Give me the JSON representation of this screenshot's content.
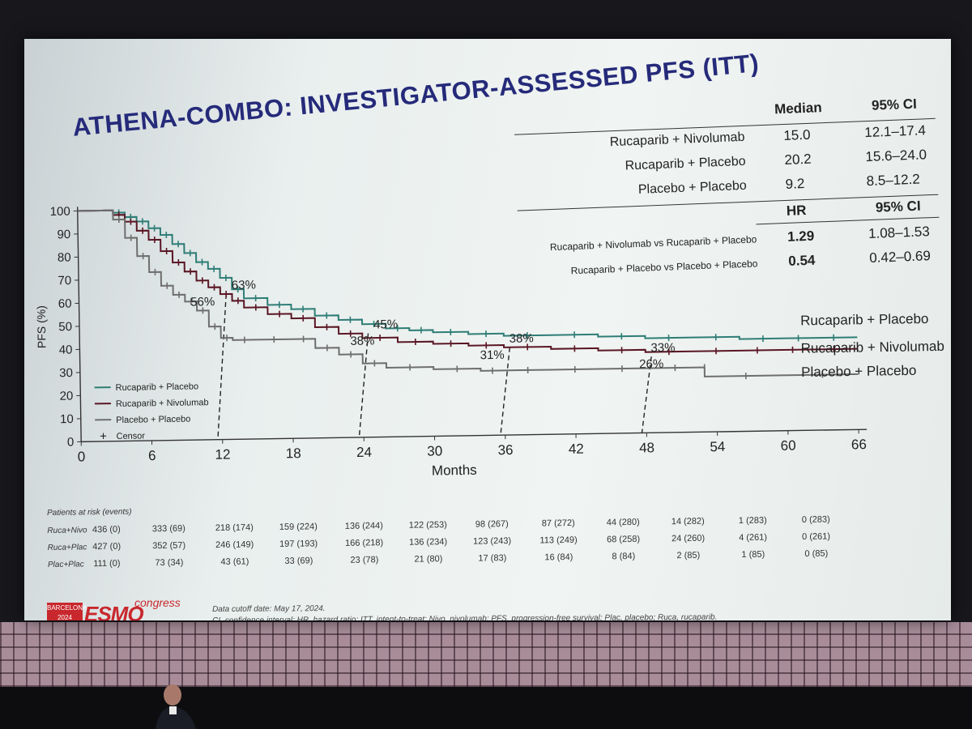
{
  "slide": {
    "title": "ATHENA-COMBO: INVESTIGATOR-ASSESSED PFS (ITT)",
    "median_header": "Median",
    "ci_header": "95% CI",
    "hr_header": "HR",
    "ci_header2": "95% CI",
    "median_rows": [
      {
        "label": "Rucaparib + Nivolumab",
        "median": "15.0",
        "ci": "12.1–17.4"
      },
      {
        "label": "Rucaparib + Placebo",
        "median": "20.2",
        "ci": "15.6–24.0"
      },
      {
        "label": "Placebo + Placebo",
        "median": "9.2",
        "ci": "8.5–12.2"
      }
    ],
    "hr_rows": [
      {
        "label": "Rucaparib + Nivolumab vs Rucaparib + Placebo",
        "hr": "1.29",
        "ci": "1.08–1.53"
      },
      {
        "label": "Rucaparib + Placebo vs Placebo + Placebo",
        "hr": "0.54",
        "ci": "0.42–0.69"
      }
    ],
    "risk_header": "Patients at risk (events)",
    "risk_rows": [
      {
        "label": "Ruca+Nivo",
        "values": [
          "436 (0)",
          "333 (69)",
          "218 (174)",
          "159 (224)",
          "136 (244)",
          "122 (253)",
          "98 (267)",
          "87 (272)",
          "44 (280)",
          "14 (282)",
          "1 (283)",
          "0 (283)"
        ]
      },
      {
        "label": "Ruca+Plac",
        "values": [
          "427 (0)",
          "352 (57)",
          "246 (149)",
          "197 (193)",
          "166 (218)",
          "136 (234)",
          "123 (243)",
          "113 (249)",
          "68 (258)",
          "24 (260)",
          "4 (261)",
          "0 (261)"
        ]
      },
      {
        "label": "Plac+Plac",
        "values": [
          "111 (0)",
          "73 (34)",
          "43 (61)",
          "33 (69)",
          "23 (78)",
          "21 (80)",
          "17 (83)",
          "16 (84)",
          "8 (84)",
          "2 (85)",
          "1 (85)",
          "0 (85)"
        ]
      }
    ],
    "footnote_1": "Data cutoff date: May 17, 2024.",
    "footnote_2": "CI, confidence interval; HR, hazard ratio; ITT, intent-to-treat; Nivo, nivolumab; PFS, progression-free survival; Plac, placebo; Ruca, rucaparib.",
    "logo": {
      "city": "BARCELONA",
      "year": "2024",
      "name": "ESMO",
      "suffix": "congress"
    }
  },
  "colors": {
    "title": "#252a7a",
    "ruca_placebo": "#2e7d76",
    "ruca_nivo": "#5a1624",
    "placebo_placebo": "#6e6e6e",
    "brand": "#c8282d"
  },
  "chart_data": {
    "type": "line",
    "xlabel": "Months",
    "ylabel": "PFS (%)",
    "xlim": [
      0,
      66
    ],
    "ylim": [
      0,
      100
    ],
    "x_ticks": [
      0,
      6,
      12,
      18,
      24,
      30,
      36,
      42,
      48,
      54,
      60,
      66
    ],
    "y_ticks": [
      0,
      10,
      20,
      30,
      40,
      50,
      60,
      70,
      80,
      90,
      100
    ],
    "legend_position": "bottom-left",
    "legend": [
      "Rucaparib + Placebo",
      "Rucaparib + Nivolumab",
      "Placebo + Placebo",
      "Censor"
    ],
    "series": [
      {
        "name": "Rucaparib + Placebo",
        "color": "#2e7d76",
        "x": [
          0,
          2,
          3,
          4,
          5,
          6,
          7,
          8,
          9,
          10,
          11,
          12,
          13,
          14,
          16,
          18,
          20,
          22,
          24,
          26,
          28,
          30,
          33,
          36,
          40,
          44,
          48,
          52,
          56,
          60,
          62,
          66
        ],
        "y": [
          100,
          100,
          99,
          97,
          95,
          92,
          89,
          85,
          81,
          77,
          74,
          70,
          65,
          61,
          58,
          56,
          53,
          51,
          49,
          47,
          46,
          45,
          44,
          43,
          43,
          42,
          41,
          41,
          40,
          40,
          40,
          40
        ]
      },
      {
        "name": "Rucaparib + Nivolumab",
        "color": "#5a1624",
        "x": [
          0,
          2,
          3,
          4,
          5,
          6,
          7,
          8,
          9,
          10,
          11,
          12,
          13,
          14,
          16,
          18,
          20,
          22,
          24,
          27,
          30,
          33,
          36,
          40,
          44,
          48,
          52,
          56,
          59,
          62,
          66
        ],
        "y": [
          100,
          100,
          98,
          95,
          91,
          87,
          82,
          77,
          73,
          69,
          66,
          63,
          60,
          57,
          54,
          52,
          48,
          45,
          43,
          41,
          40,
          39,
          38,
          37,
          36,
          35,
          35,
          35,
          35,
          35,
          35
        ]
      },
      {
        "name": "Placebo + Placebo",
        "color": "#6e6e6e",
        "x": [
          0,
          2,
          3,
          4,
          5,
          6,
          7,
          8,
          9,
          10,
          11,
          12,
          13,
          15,
          18,
          20,
          22,
          24,
          26,
          30,
          34,
          36,
          40,
          44,
          48,
          53,
          53,
          60,
          66
        ],
        "y": [
          100,
          100,
          96,
          88,
          80,
          73,
          67,
          63,
          60,
          56,
          49,
          44,
          43,
          43,
          43,
          39,
          36,
          32,
          30,
          29,
          28,
          28,
          28,
          28,
          28,
          28,
          24,
          24,
          24
        ]
      }
    ],
    "annotations": [
      {
        "text": "63%",
        "x": 14,
        "y": 63,
        "color": "#2e7d76"
      },
      {
        "text": "45%",
        "x": 26,
        "y": 45,
        "color": "#2e7d76"
      },
      {
        "text": "38%",
        "x": 37.5,
        "y": 38,
        "color": "#2e7d76"
      },
      {
        "text": "33%",
        "x": 49.5,
        "y": 33,
        "color": "#2e7d76"
      },
      {
        "text": "56%",
        "x": 10.5,
        "y": 56,
        "color": "#5a1624"
      },
      {
        "text": "38%",
        "x": 24,
        "y": 38,
        "color": "#5a1624"
      },
      {
        "text": "31%",
        "x": 35,
        "y": 31,
        "color": "#5a1624"
      },
      {
        "text": "26%",
        "x": 48.5,
        "y": 26,
        "color": "#5a1624"
      }
    ],
    "median_markers": [
      12,
      24,
      36,
      48
    ],
    "end_labels": [
      "Rucaparib + Placebo",
      "Rucaparib + Nivolumab",
      "Placebo + Placebo"
    ]
  }
}
